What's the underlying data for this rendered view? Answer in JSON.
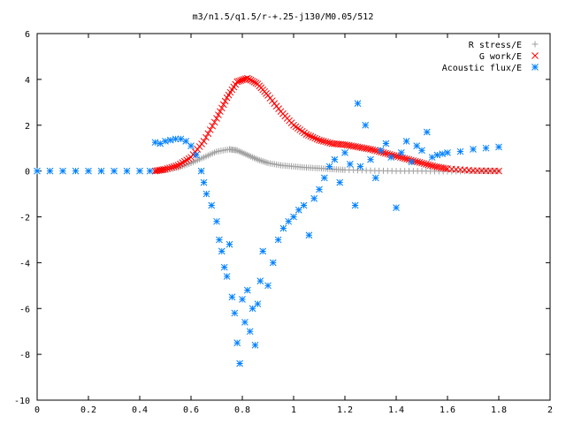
{
  "chart_data": {
    "type": "scatter",
    "title": "m3/n1.5/q1.5/r-+.25-j130/M0.05/512",
    "xlabel": "",
    "ylabel": "",
    "xlim": [
      0,
      2
    ],
    "ylim": [
      -10,
      6
    ],
    "xticks": [
      "0",
      "0.2",
      "0.4",
      "0.6",
      "0.8",
      "1",
      "1.2",
      "1.4",
      "1.6",
      "1.8",
      "2"
    ],
    "yticks": [
      "6",
      "4",
      "2",
      "0",
      "-2",
      "-4",
      "-6",
      "-8",
      "-10"
    ],
    "grid": false,
    "legend_position": "top-right",
    "series": [
      {
        "name": "R stress/E",
        "marker": "plus",
        "color": "#a0a0a0",
        "points": [
          [
            0.46,
            0.0
          ],
          [
            0.5,
            0.05
          ],
          [
            0.55,
            0.15
          ],
          [
            0.6,
            0.35
          ],
          [
            0.65,
            0.6
          ],
          [
            0.7,
            0.85
          ],
          [
            0.75,
            0.95
          ],
          [
            0.78,
            0.9
          ],
          [
            0.82,
            0.7
          ],
          [
            0.86,
            0.5
          ],
          [
            0.9,
            0.35
          ],
          [
            0.95,
            0.25
          ],
          [
            1.0,
            0.2
          ],
          [
            1.05,
            0.15
          ],
          [
            1.1,
            0.12
          ],
          [
            1.15,
            0.08
          ],
          [
            1.2,
            0.05
          ],
          [
            1.3,
            0.02
          ],
          [
            1.4,
            0.0
          ],
          [
            1.5,
            0.0
          ],
          [
            1.6,
            -0.02
          ],
          [
            1.7,
            0.0
          ],
          [
            1.8,
            0.0
          ]
        ]
      },
      {
        "name": "G work/E",
        "marker": "cross",
        "color": "#ff0000",
        "points": [
          [
            0.46,
            0.0
          ],
          [
            0.5,
            0.08
          ],
          [
            0.55,
            0.25
          ],
          [
            0.6,
            0.6
          ],
          [
            0.65,
            1.3
          ],
          [
            0.7,
            2.3
          ],
          [
            0.74,
            3.2
          ],
          [
            0.78,
            3.9
          ],
          [
            0.82,
            4.05
          ],
          [
            0.86,
            3.8
          ],
          [
            0.9,
            3.3
          ],
          [
            0.95,
            2.6
          ],
          [
            1.0,
            2.0
          ],
          [
            1.05,
            1.6
          ],
          [
            1.1,
            1.35
          ],
          [
            1.15,
            1.2
          ],
          [
            1.2,
            1.15
          ],
          [
            1.25,
            1.05
          ],
          [
            1.3,
            0.95
          ],
          [
            1.35,
            0.8
          ],
          [
            1.4,
            0.65
          ],
          [
            1.45,
            0.5
          ],
          [
            1.5,
            0.35
          ],
          [
            1.55,
            0.2
          ],
          [
            1.6,
            0.1
          ],
          [
            1.7,
            0.02
          ],
          [
            1.8,
            0.0
          ]
        ]
      },
      {
        "name": "Acoustic flux/E",
        "marker": "star",
        "color": "#0080ff",
        "points": [
          [
            0.0,
            0.0
          ],
          [
            0.05,
            0.0
          ],
          [
            0.1,
            0.0
          ],
          [
            0.15,
            0.0
          ],
          [
            0.2,
            0.0
          ],
          [
            0.25,
            0.0
          ],
          [
            0.3,
            0.0
          ],
          [
            0.35,
            0.0
          ],
          [
            0.4,
            0.0
          ],
          [
            0.44,
            0.0
          ],
          [
            0.46,
            1.25
          ],
          [
            0.48,
            1.2
          ],
          [
            0.5,
            1.3
          ],
          [
            0.52,
            1.35
          ],
          [
            0.54,
            1.4
          ],
          [
            0.56,
            1.4
          ],
          [
            0.58,
            1.3
          ],
          [
            0.6,
            1.1
          ],
          [
            0.62,
            0.7
          ],
          [
            0.64,
            0.0
          ],
          [
            0.65,
            -0.5
          ],
          [
            0.66,
            -1.0
          ],
          [
            0.68,
            -1.5
          ],
          [
            0.7,
            -2.2
          ],
          [
            0.71,
            -3.0
          ],
          [
            0.72,
            -3.5
          ],
          [
            0.73,
            -4.2
          ],
          [
            0.74,
            -4.6
          ],
          [
            0.75,
            -3.2
          ],
          [
            0.76,
            -5.5
          ],
          [
            0.77,
            -6.2
          ],
          [
            0.78,
            -7.5
          ],
          [
            0.79,
            -8.4
          ],
          [
            0.8,
            -5.6
          ],
          [
            0.81,
            -6.6
          ],
          [
            0.82,
            -5.2
          ],
          [
            0.83,
            -7.0
          ],
          [
            0.84,
            -6.0
          ],
          [
            0.85,
            -7.6
          ],
          [
            0.86,
            -5.8
          ],
          [
            0.87,
            -4.8
          ],
          [
            0.88,
            -3.5
          ],
          [
            0.9,
            -5.0
          ],
          [
            0.92,
            -4.0
          ],
          [
            0.94,
            -3.0
          ],
          [
            0.96,
            -2.5
          ],
          [
            0.98,
            -2.2
          ],
          [
            1.0,
            -2.0
          ],
          [
            1.02,
            -1.7
          ],
          [
            1.04,
            -1.5
          ],
          [
            1.06,
            -2.8
          ],
          [
            1.08,
            -1.2
          ],
          [
            1.1,
            -0.8
          ],
          [
            1.12,
            -0.3
          ],
          [
            1.14,
            0.2
          ],
          [
            1.16,
            0.5
          ],
          [
            1.18,
            -0.5
          ],
          [
            1.2,
            0.8
          ],
          [
            1.22,
            0.3
          ],
          [
            1.24,
            -1.5
          ],
          [
            1.25,
            2.95
          ],
          [
            1.26,
            0.2
          ],
          [
            1.28,
            2.0
          ],
          [
            1.3,
            0.5
          ],
          [
            1.32,
            -0.3
          ],
          [
            1.34,
            0.9
          ],
          [
            1.36,
            1.2
          ],
          [
            1.38,
            0.6
          ],
          [
            1.4,
            -1.6
          ],
          [
            1.42,
            0.8
          ],
          [
            1.44,
            1.3
          ],
          [
            1.46,
            0.4
          ],
          [
            1.48,
            1.1
          ],
          [
            1.5,
            0.9
          ],
          [
            1.52,
            1.7
          ],
          [
            1.54,
            0.6
          ],
          [
            1.56,
            0.7
          ],
          [
            1.58,
            0.75
          ],
          [
            1.6,
            0.8
          ],
          [
            1.65,
            0.85
          ],
          [
            1.7,
            0.95
          ],
          [
            1.75,
            1.0
          ],
          [
            1.8,
            1.05
          ]
        ]
      }
    ]
  }
}
